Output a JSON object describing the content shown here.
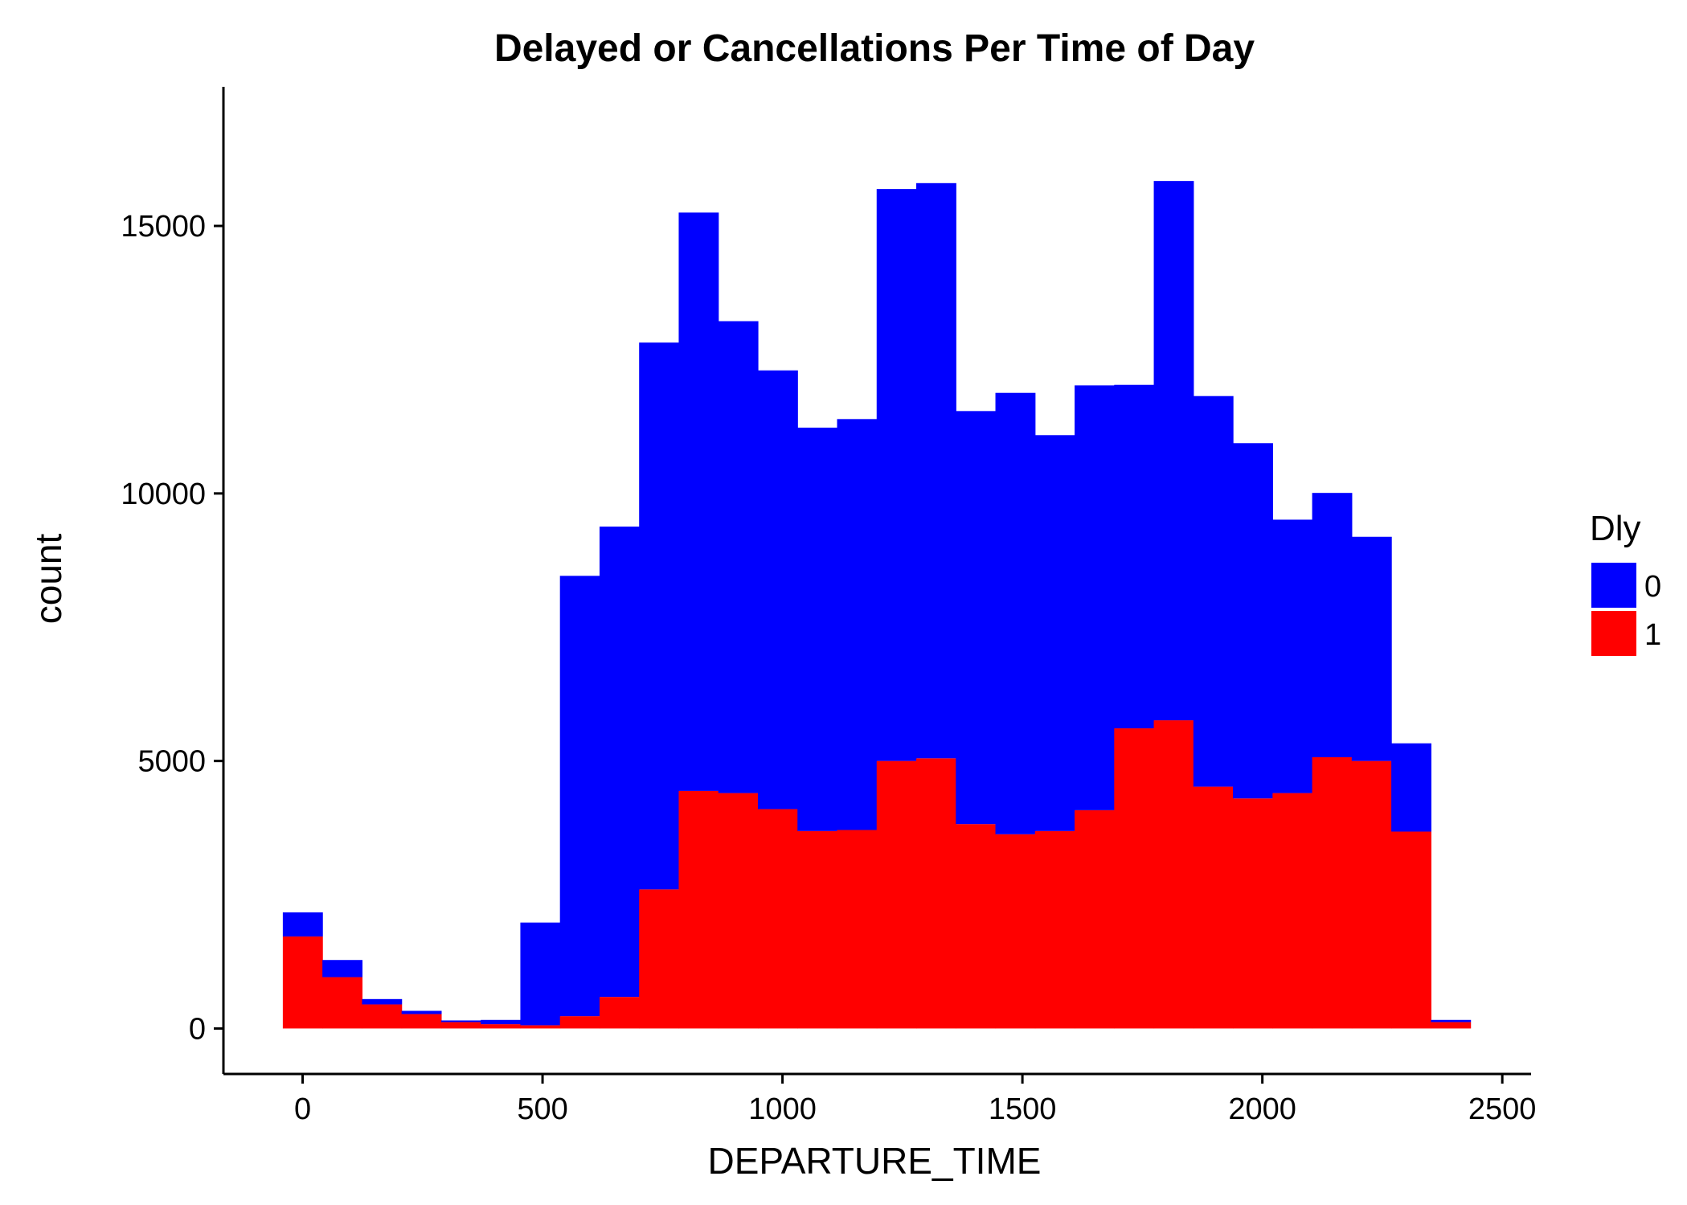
{
  "chart_data": {
    "type": "bar",
    "stacked": true,
    "title": "Delayed or Cancellations Per Time of Day",
    "xlabel": "DEPARTURE_TIME",
    "ylabel": "count",
    "xlim": [
      -165,
      2560
    ],
    "ylim": [
      -850,
      17600
    ],
    "x_ticks": [
      0,
      500,
      1000,
      1500,
      2000,
      2500
    ],
    "y_ticks": [
      0,
      5000,
      10000,
      15000
    ],
    "bin_width": 82.5,
    "bin_starts": [
      -41.25,
      41.25,
      123.75,
      206.25,
      288.75,
      371.25,
      453.75,
      536.25,
      618.75,
      701.25,
      783.75,
      866.25,
      948.75,
      1031.25,
      1113.75,
      1196.25,
      1278.75,
      1361.25,
      1443.75,
      1526.25,
      1608.75,
      1691.25,
      1773.75,
      1856.25,
      1938.75,
      2021.25,
      2103.75,
      2186.25,
      2268.75,
      2351.25
    ],
    "legend": {
      "title": "Dly",
      "position": "right"
    },
    "series": [
      {
        "name": "1",
        "color": "#ff0000",
        "values": [
          1720,
          960,
          450,
          270,
          120,
          80,
          60,
          230,
          590,
          2600,
          4440,
          4400,
          4100,
          3690,
          3710,
          5000,
          5050,
          3820,
          3630,
          3690,
          4080,
          5610,
          5760,
          4520,
          4300,
          4400,
          5070,
          5000,
          3680,
          120
        ]
      },
      {
        "name": "0",
        "color": "#0000ff",
        "values": [
          450,
          320,
          100,
          60,
          30,
          80,
          1920,
          8230,
          8790,
          10220,
          10810,
          8820,
          8200,
          7540,
          7680,
          10690,
          10750,
          7720,
          8250,
          7400,
          7940,
          6420,
          10080,
          7300,
          6640,
          5110,
          4940,
          4190,
          1650,
          40
        ]
      }
    ]
  }
}
